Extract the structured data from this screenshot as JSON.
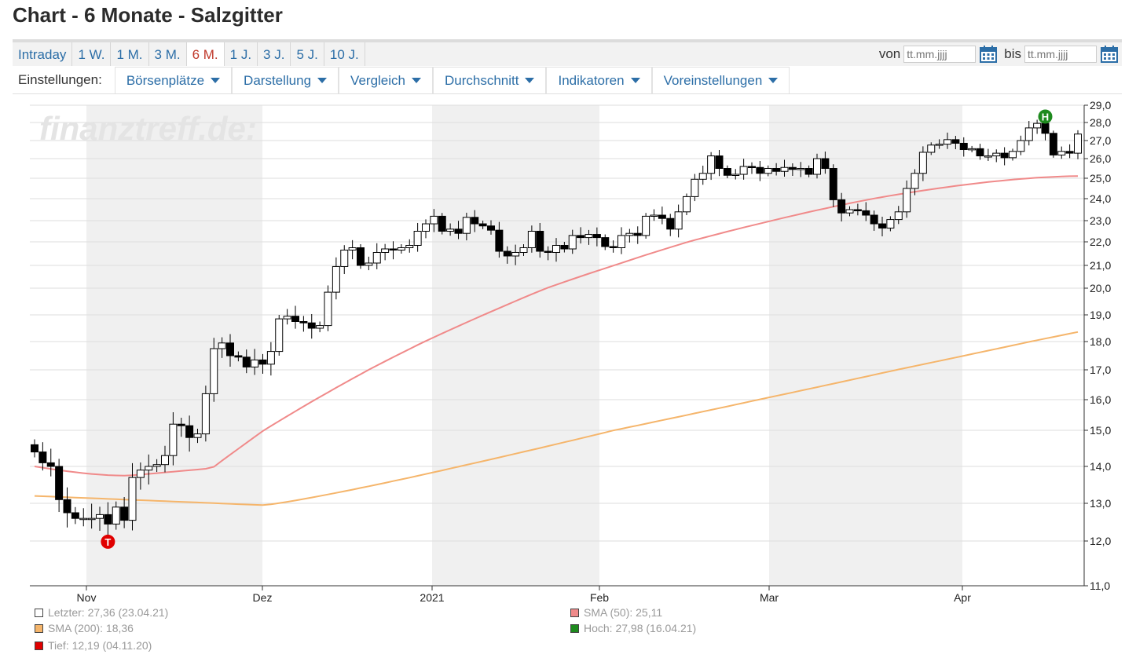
{
  "page": {
    "title": "Chart - 6 Monate - Salzgitter"
  },
  "range_tabs": [
    {
      "label": "Intraday"
    },
    {
      "label": "1 W."
    },
    {
      "label": "1 M."
    },
    {
      "label": "3 M."
    },
    {
      "label": "6 M.",
      "active": true
    },
    {
      "label": "1 J."
    },
    {
      "label": "3 J."
    },
    {
      "label": "5 J."
    },
    {
      "label": "10 J."
    }
  ],
  "date_range": {
    "from_label": "von",
    "from_placeholder": "tt.mm.jjjj",
    "to_label": "bis",
    "to_placeholder": "tt.mm.jjjj"
  },
  "settings": {
    "label": "Einstellungen:",
    "menus": [
      "Börsenplätze",
      "Darstellung",
      "Vergleich",
      "Durchschnitt",
      "Indikatoren",
      "Voreinstellungen"
    ]
  },
  "watermark": "finanztreff.de:",
  "chart_data": {
    "type": "candlestick",
    "x_labels": [
      "Nov",
      "Dez",
      "2021",
      "Feb",
      "Mar",
      "Apr"
    ],
    "y_ticks": [
      "29,0",
      "28,0",
      "27,0",
      "26,0",
      "25,0",
      "24,0",
      "23,0",
      "22,0",
      "21,0",
      "20,0",
      "19,0",
      "18,0",
      "17,0",
      "16,0",
      "15,0",
      "14,0",
      "13,0",
      "12,0",
      "11,0"
    ],
    "y_range": [
      11,
      29
    ],
    "colors": {
      "sma50": "#f08a8a",
      "sma200": "#f5b56b",
      "up": "#ffffff",
      "down": "#000000",
      "shade": "#f0f0f0"
    },
    "close": [
      14.4,
      14.1,
      14.0,
      13.1,
      12.75,
      12.6,
      12.6,
      12.6,
      12.7,
      12.45,
      12.9,
      12.55,
      13.7,
      13.9,
      14.0,
      14.05,
      14.3,
      15.2,
      15.15,
      14.8,
      14.9,
      16.2,
      17.75,
      17.95,
      17.5,
      17.45,
      17.1,
      17.35,
      17.2,
      17.65,
      18.85,
      18.95,
      18.75,
      18.7,
      18.5,
      18.6,
      19.85,
      20.95,
      21.65,
      21.75,
      21.0,
      21.1,
      21.55,
      21.7,
      21.65,
      21.75,
      21.85,
      22.5,
      22.85,
      23.2,
      22.5,
      22.6,
      22.4,
      23.15,
      22.85,
      22.75,
      22.55,
      21.6,
      21.4,
      21.55,
      21.75,
      22.5,
      21.6,
      21.55,
      21.85,
      21.7,
      22.3,
      22.2,
      22.35,
      22.2,
      21.8,
      21.75,
      22.3,
      22.4,
      22.3,
      23.2,
      23.25,
      23.1,
      22.6,
      23.4,
      24.1,
      24.95,
      25.25,
      26.15,
      25.5,
      25.15,
      25.2,
      25.6,
      25.55,
      25.25,
      25.5,
      25.35,
      25.55,
      25.45,
      25.5,
      25.2,
      26.0,
      25.5,
      23.95,
      23.35,
      23.5,
      23.45,
      23.25,
      22.85,
      22.65,
      23.05,
      23.4,
      24.5,
      25.25,
      26.35,
      26.75,
      26.8,
      27.05,
      26.85,
      26.5,
      26.55,
      26.15,
      26.15,
      26.3,
      26.05,
      26.4,
      27.0,
      27.7,
      27.95,
      27.4,
      26.2,
      26.4,
      26.3,
      27.36
    ],
    "open_ref": 14.6,
    "sma50_start": 14.0,
    "sma200_start": 13.2,
    "sma50_end": 25.11,
    "sma200_end": 18.36,
    "markers": {
      "low": {
        "label": "T",
        "value": 12.19
      },
      "high": {
        "label": "H",
        "value": 27.98
      }
    },
    "legend": [
      {
        "label": "Letzter: 27,36 (23.04.21)",
        "color": "#ffffff"
      },
      {
        "label": "SMA (50): 25,11",
        "color": "#f08a8a"
      },
      {
        "label": "SMA (200): 18,36",
        "color": "#f5b56b"
      },
      {
        "label": "Hoch: 27,98 (16.04.21)",
        "color": "#1e8a1e"
      },
      {
        "label": "Tief: 12,19 (04.11.20)",
        "color": "#e00000"
      }
    ]
  }
}
